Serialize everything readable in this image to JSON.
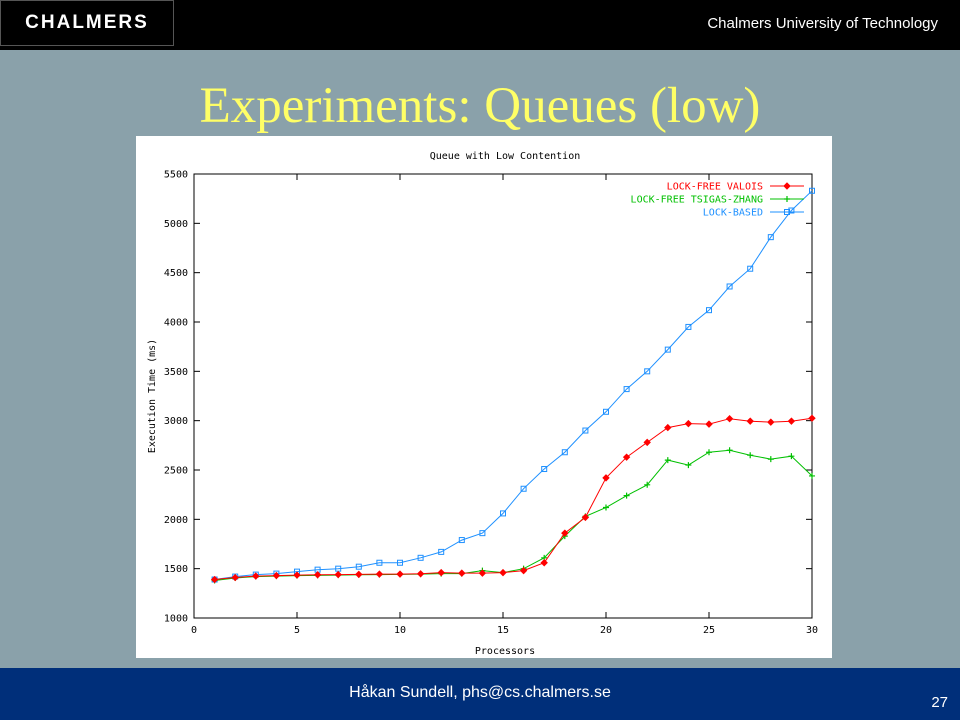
{
  "header": {
    "logo_text": "CHALMERS",
    "university": "Chalmers University of Technology"
  },
  "slide": {
    "title": "Experiments: Queues (low)",
    "page_number": "27"
  },
  "footer": {
    "author": "Håkan Sundell, phs@cs.chalmers.se"
  },
  "chart_data": {
    "type": "line",
    "title": "Queue with Low Contention",
    "xlabel": "Processors",
    "ylabel": "Execution Time (ms)",
    "xlim": [
      0,
      30
    ],
    "ylim": [
      1000,
      5500
    ],
    "xticks": [
      0,
      5,
      10,
      15,
      20,
      25,
      30
    ],
    "yticks": [
      1000,
      1500,
      2000,
      2500,
      3000,
      3500,
      4000,
      4500,
      5000,
      5500
    ],
    "grid": false,
    "legend_position": "top-right",
    "x": [
      1,
      2,
      3,
      4,
      5,
      6,
      7,
      8,
      9,
      10,
      11,
      12,
      13,
      14,
      15,
      16,
      17,
      18,
      19,
      20,
      21,
      22,
      23,
      24,
      25,
      26,
      27,
      28,
      29,
      30
    ],
    "series": [
      {
        "name": "LOCK-FREE VALOIS",
        "color": "#ff0000",
        "marker": "diamond",
        "values": [
          1390,
          1410,
          1425,
          1430,
          1435,
          1438,
          1440,
          1442,
          1445,
          1445,
          1448,
          1460,
          1455,
          1455,
          1460,
          1480,
          1560,
          1860,
          2020,
          2420,
          2630,
          2780,
          2930,
          2970,
          2965,
          3020,
          2995,
          2985,
          2995,
          3025
        ]
      },
      {
        "name": "LOCK-FREE TSIGAS-ZHANG",
        "color": "#00c000",
        "marker": "plus",
        "values": [
          1380,
          1405,
          1420,
          1425,
          1430,
          1432,
          1435,
          1438,
          1440,
          1442,
          1445,
          1450,
          1450,
          1480,
          1460,
          1500,
          1610,
          1830,
          2030,
          2120,
          2240,
          2350,
          2600,
          2550,
          2680,
          2700,
          2650,
          2610,
          2640,
          2440
        ]
      },
      {
        "name": "LOCK-BASED",
        "color": "#1e90ff",
        "marker": "square",
        "values": [
          1390,
          1420,
          1440,
          1450,
          1470,
          1490,
          1500,
          1520,
          1560,
          1560,
          1610,
          1670,
          1790,
          1860,
          2060,
          2310,
          2510,
          2680,
          2900,
          3090,
          3320,
          3500,
          3720,
          3950,
          4120,
          4360,
          4540,
          4860,
          5130,
          5330
        ]
      }
    ]
  }
}
